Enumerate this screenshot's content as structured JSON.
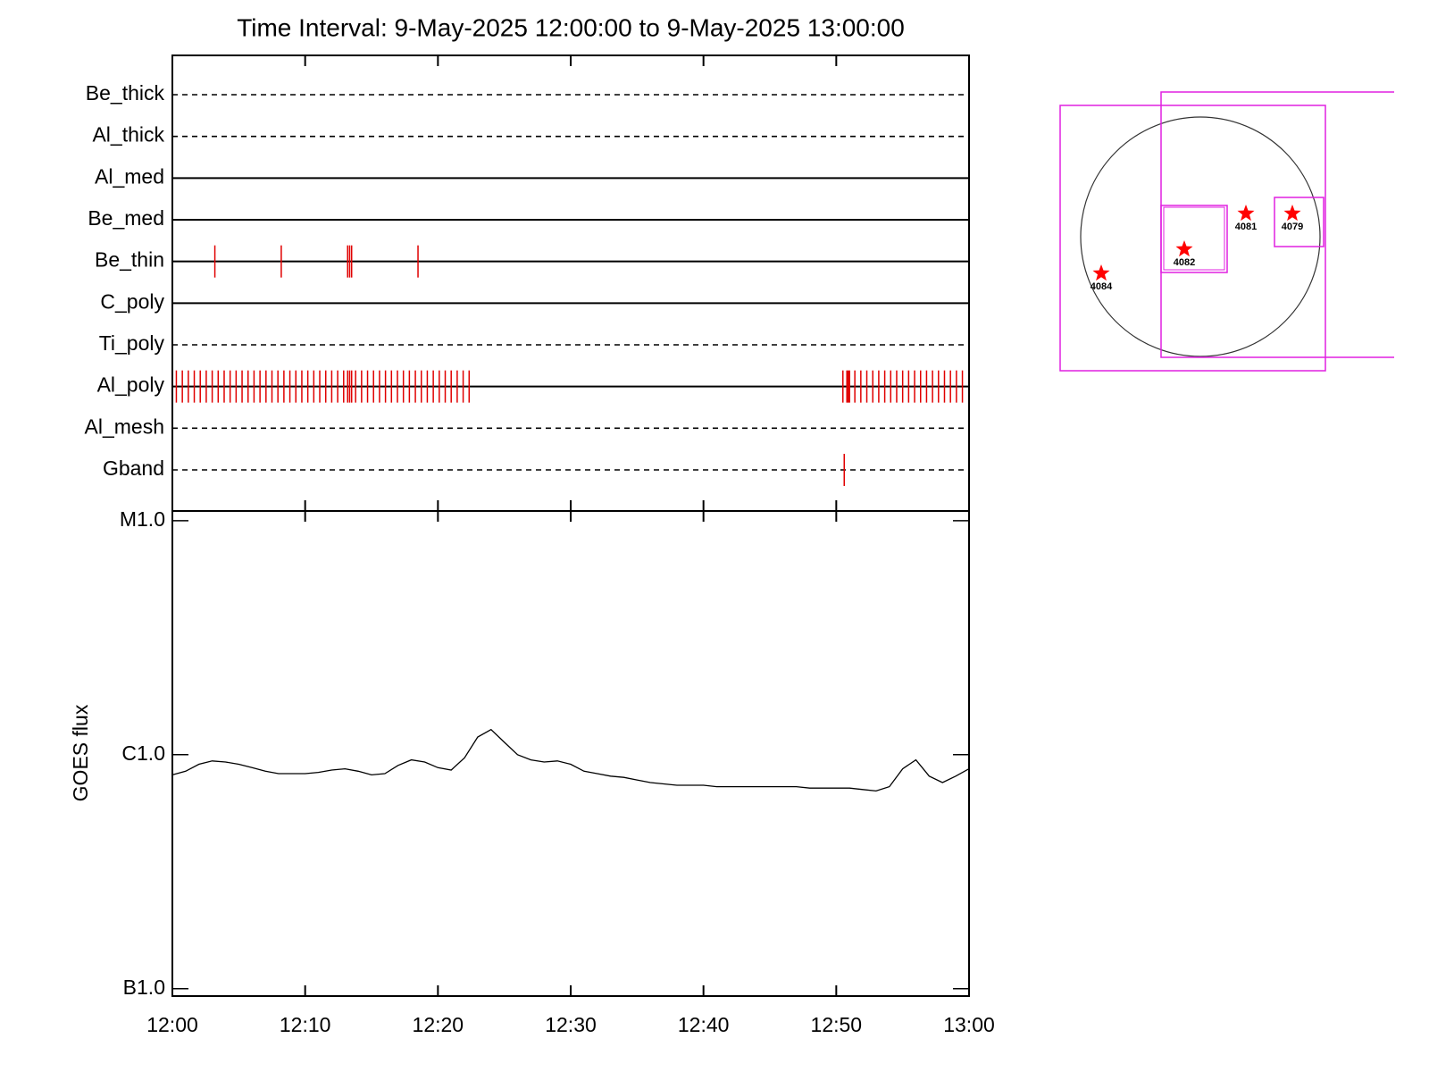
{
  "chart_data": [
    {
      "type": "event",
      "title": "Time Interval:  9-May-2025 12:00:00 to  9-May-2025 13:00:00",
      "categories": [
        "Be_thick",
        "Al_thick",
        "Al_med",
        "Be_med",
        "Be_thin",
        "C_poly",
        "Ti_poly",
        "Al_poly",
        "Al_mesh",
        "Gband"
      ],
      "line_styles": [
        "dashed",
        "dashed",
        "solid",
        "solid",
        "solid",
        "solid",
        "dashed",
        "solid",
        "dashed",
        "dashed"
      ],
      "events": [
        [],
        [],
        [],
        [],
        [
          3.2,
          8.2,
          13.2,
          13.35,
          13.5,
          18.5
        ],
        [],
        [],
        [
          0.3,
          0.75,
          1.2,
          1.65,
          2.1,
          2.55,
          3.0,
          3.45,
          3.9,
          4.35,
          4.8,
          5.25,
          5.7,
          6.15,
          6.6,
          7.05,
          7.5,
          7.95,
          8.4,
          8.85,
          9.3,
          9.75,
          10.2,
          10.65,
          11.1,
          11.55,
          12.0,
          12.45,
          12.9,
          13.2,
          13.35,
          13.5,
          13.8,
          14.25,
          14.7,
          15.15,
          15.6,
          16.05,
          16.5,
          16.95,
          17.4,
          17.85,
          18.3,
          18.75,
          19.2,
          19.65,
          20.1,
          20.55,
          21.0,
          21.45,
          21.9,
          22.35,
          50.5,
          50.8,
          50.9,
          51.0,
          51.4,
          51.85,
          52.3,
          52.75,
          53.2,
          53.65,
          54.1,
          54.55,
          55.0,
          55.45,
          55.9,
          56.35,
          56.8,
          57.25,
          57.7,
          58.15,
          58.6,
          59.05,
          59.5
        ],
        [],
        [
          50.6
        ]
      ],
      "xlim": [
        0,
        60
      ],
      "color": "#e00000"
    },
    {
      "type": "line",
      "ylabel": "GOES flux",
      "x": [
        0,
        1,
        2,
        3,
        4,
        5,
        6,
        7,
        8,
        9,
        10,
        11,
        12,
        13,
        14,
        15,
        16,
        17,
        18,
        19,
        20,
        21,
        22,
        23,
        24,
        25,
        26,
        27,
        28,
        29,
        30,
        31,
        32,
        33,
        34,
        35,
        36,
        37,
        38,
        39,
        40,
        41,
        42,
        43,
        44,
        45,
        46,
        47,
        48,
        49,
        50,
        51,
        52,
        53,
        54,
        55,
        56,
        57,
        58,
        59,
        60
      ],
      "values": [
        8.2e-07,
        8.5e-07,
        9.1e-07,
        9.4e-07,
        9.3e-07,
        9.1e-07,
        8.8e-07,
        8.5e-07,
        8.3e-07,
        8.3e-07,
        8.3e-07,
        8.4e-07,
        8.6e-07,
        8.7e-07,
        8.5e-07,
        8.2e-07,
        8.3e-07,
        9e-07,
        9.5e-07,
        9.3e-07,
        8.8e-07,
        8.6e-07,
        9.7e-07,
        1.19e-06,
        1.28e-06,
        1.13e-06,
        1e-06,
        9.5e-07,
        9.3e-07,
        9.4e-07,
        9.1e-07,
        8.5e-07,
        8.3e-07,
        8.1e-07,
        8e-07,
        7.8e-07,
        7.6e-07,
        7.5e-07,
        7.4e-07,
        7.4e-07,
        7.4e-07,
        7.3e-07,
        7.3e-07,
        7.3e-07,
        7.3e-07,
        7.3e-07,
        7.3e-07,
        7.3e-07,
        7.2e-07,
        7.2e-07,
        7.2e-07,
        7.2e-07,
        7.1e-07,
        7e-07,
        7.3e-07,
        8.7e-07,
        9.5e-07,
        8.1e-07,
        7.6e-07,
        8.1e-07,
        8.7e-07
      ],
      "xlim": [
        0,
        60
      ],
      "xticks": [
        {
          "value": 0,
          "label": "12:00"
        },
        {
          "value": 10,
          "label": "12:10"
        },
        {
          "value": 20,
          "label": "12:20"
        },
        {
          "value": 30,
          "label": "12:30"
        },
        {
          "value": 40,
          "label": "12:40"
        },
        {
          "value": 50,
          "label": "12:50"
        },
        {
          "value": 60,
          "label": "13:00"
        }
      ],
      "ylim": [
        9.3e-08,
        1.1e-05
      ],
      "yticks": [
        {
          "value": 1e-07,
          "label": "B1.0"
        },
        {
          "value": 1e-06,
          "label": "C1.0"
        },
        {
          "value": 1e-05,
          "label": "M1.0"
        }
      ],
      "log_y": true,
      "color": "#000000"
    }
  ],
  "map": {
    "regions": [
      "4084",
      "4082",
      "4081",
      "4079"
    ]
  }
}
